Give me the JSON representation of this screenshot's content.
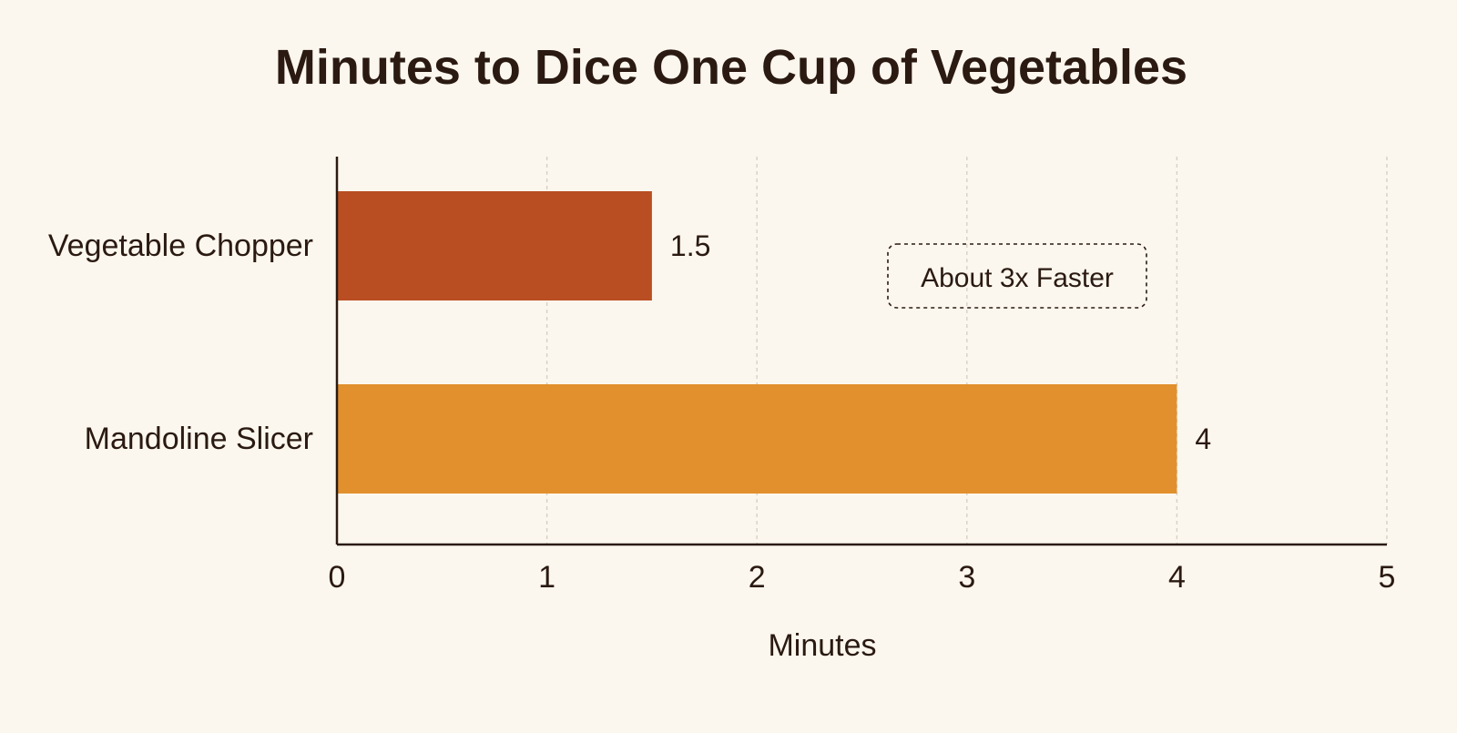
{
  "chart_data": {
    "type": "bar",
    "orientation": "horizontal",
    "title": "Minutes to Dice One Cup of Vegetables",
    "xlabel": "Minutes",
    "ylabel": "",
    "categories": [
      "Vegetable Chopper",
      "Mandoline Slicer"
    ],
    "values": [
      1.5,
      4
    ],
    "value_labels": [
      "1.5",
      "4"
    ],
    "bar_colors": [
      "#b94e22",
      "#e2902d"
    ],
    "xlim": [
      0,
      5
    ],
    "x_ticks": [
      0,
      1,
      2,
      3,
      4,
      5
    ],
    "grid": "vertical dashed",
    "annotation": "About 3x Faster"
  },
  "colors": {
    "background": "#fcf7ee",
    "text": "#2a1a12",
    "axis": "#2a1a12",
    "grid": "#d6cfc4"
  }
}
